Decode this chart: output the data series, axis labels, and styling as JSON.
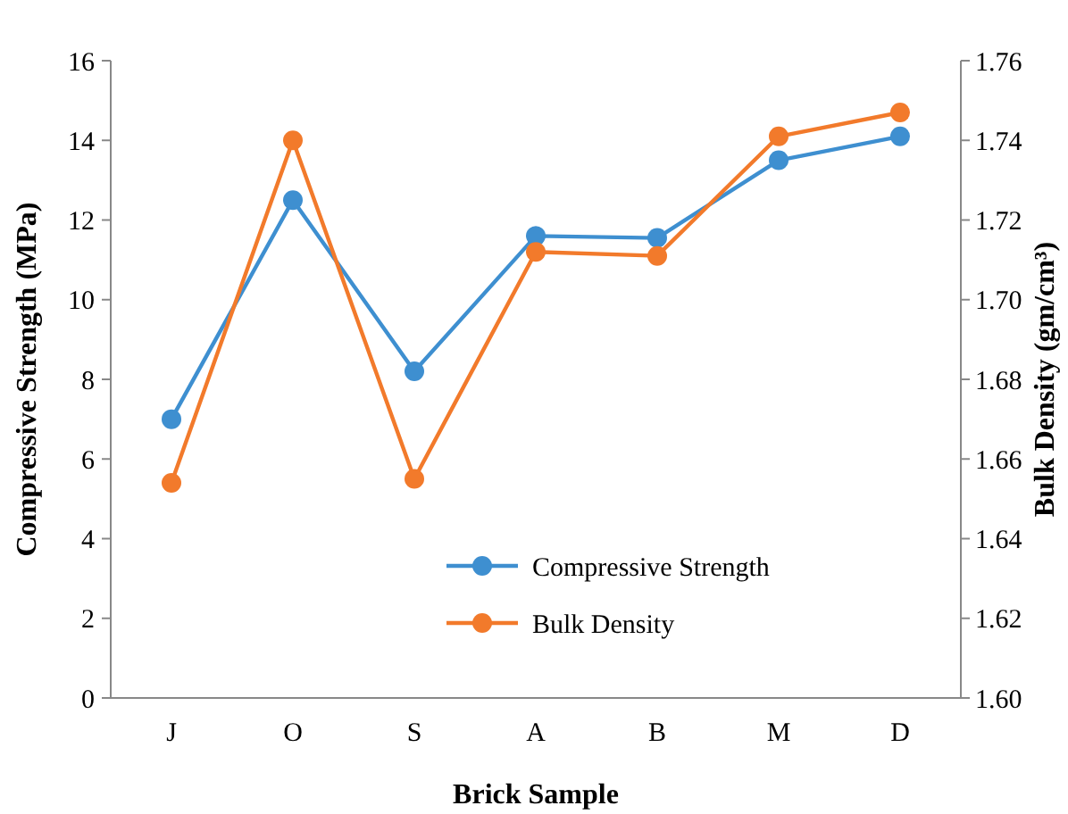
{
  "chart_data": {
    "type": "line",
    "xlabel": "Brick Sample",
    "ylabel": "Compressive Strength (MPa)",
    "y2label": "Bulk Density (gm/cm³)",
    "categories": [
      "J",
      "O",
      "S",
      "A",
      "B",
      "M",
      "D"
    ],
    "series": [
      {
        "name": "Compressive Strength",
        "color": "#3e8fd0",
        "values": [
          7.0,
          12.5,
          8.2,
          11.6,
          11.55,
          13.5,
          14.1
        ]
      },
      {
        "name": "Bulk Density",
        "color": "#f27a2b",
        "axis": "y2",
        "values": [
          1.654,
          1.74,
          1.655,
          1.712,
          1.711,
          1.741,
          1.747
        ]
      }
    ],
    "ylim": [
      0,
      16
    ],
    "yticks": [
      0,
      2,
      4,
      6,
      8,
      10,
      12,
      14,
      16
    ],
    "y2lim": [
      1.6,
      1.76
    ],
    "y2ticks": [
      {
        "value": 1.6,
        "label": "1.60"
      },
      {
        "value": 1.62,
        "label": "1.62"
      },
      {
        "value": 1.64,
        "label": "1.64"
      },
      {
        "value": 1.66,
        "label": "1.66"
      },
      {
        "value": 1.68,
        "label": "1.68"
      },
      {
        "value": 1.7,
        "label": "1.70"
      },
      {
        "value": 1.72,
        "label": "1.72"
      },
      {
        "value": 1.74,
        "label": "1.74"
      },
      {
        "value": 1.76,
        "label": "1.76"
      }
    ],
    "marker": "circle",
    "legend": "bottom right",
    "grid": false
  }
}
